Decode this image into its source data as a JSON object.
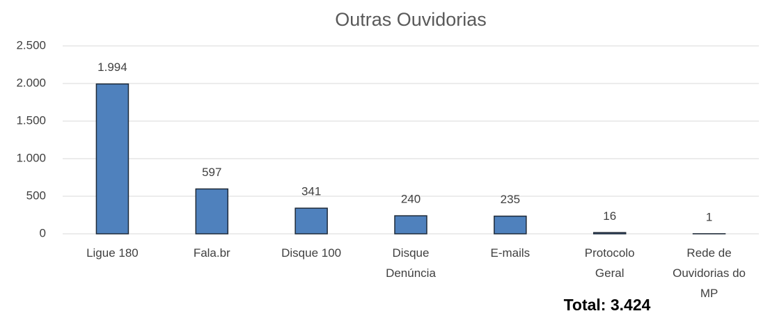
{
  "chart_data": {
    "type": "bar",
    "title": "Outras Ouvidorias",
    "categories": [
      "Ligue 180",
      "Fala.br",
      "Disque 100",
      "Disque Denúncia",
      "E-mails",
      "Protocolo Geral",
      "Rede de Ouvidorias do MP"
    ],
    "values": [
      1994,
      597,
      341,
      240,
      235,
      16,
      1
    ],
    "value_labels": [
      "1.994",
      "597",
      "341",
      "240",
      "235",
      "16",
      "1"
    ],
    "color": "#4f81bd",
    "ylim": [
      0,
      2500
    ],
    "yticks": [
      0,
      500,
      {
        "value": 1000,
        "label": "1.000"
      },
      {
        "value": 1500,
        "label": "1.500"
      },
      {
        "value": 2000,
        "label": "2.000"
      },
      {
        "value": 2500,
        "label": "2.500"
      }
    ],
    "grid": true,
    "annotation": "Total: 3.424"
  }
}
